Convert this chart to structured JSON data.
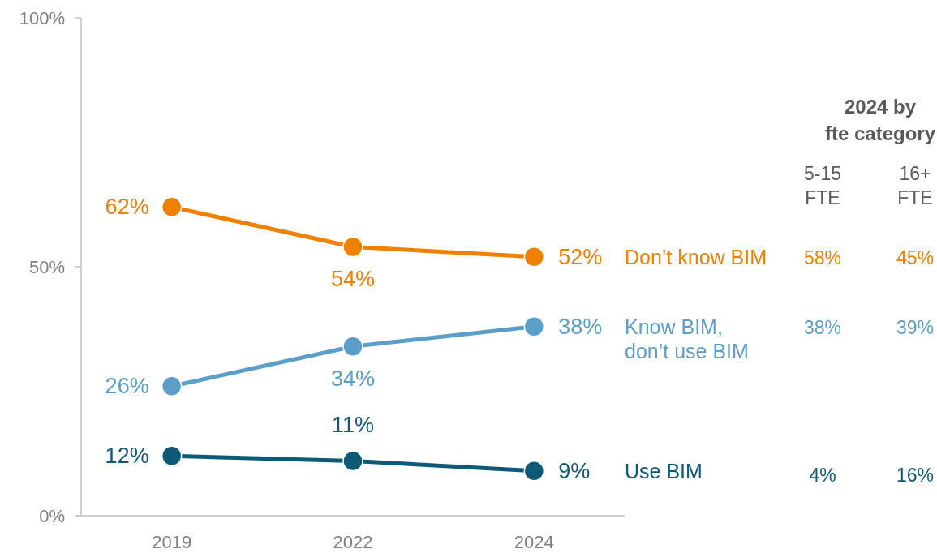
{
  "chart_data": {
    "type": "line",
    "categories": [
      "2019",
      "2022",
      "2024"
    ],
    "series": [
      {
        "name": "Don’t know BIM",
        "color": "#f08000",
        "values": [
          62,
          54,
          52
        ]
      },
      {
        "name": "Know BIM,\ndon’t use BIM",
        "color": "#5b9ec9",
        "values": [
          26,
          34,
          38
        ]
      },
      {
        "name": "Use BIM",
        "color": "#0d5a78",
        "values": [
          12,
          11,
          9
        ]
      }
    ],
    "ylim": [
      0,
      100
    ],
    "yticks": [
      {
        "value": 0,
        "label": "0%"
      },
      {
        "value": 50,
        "label": "50%"
      },
      {
        "value": 100,
        "label": "100%"
      }
    ],
    "value_labels": [
      [
        "62%",
        "54%",
        "52%"
      ],
      [
        "26%",
        "34%",
        "38%"
      ],
      [
        "12%",
        "11%",
        "9%"
      ]
    ],
    "grid": false,
    "marker": "circle",
    "line_style": "solid",
    "annotations": [
      "2024 by\nfte category",
      "5-15\nFTE",
      "16+\nFTE",
      "58%",
      "45%",
      "38%",
      "39%",
      "4%",
      "16%"
    ]
  }
}
